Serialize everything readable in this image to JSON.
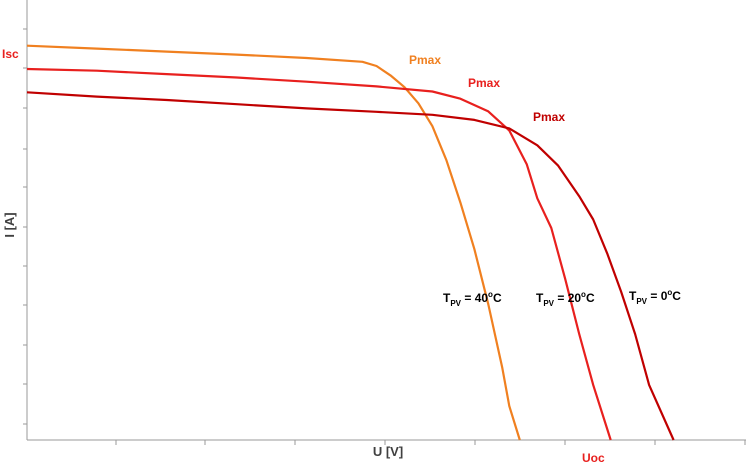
{
  "chart_data": {
    "type": "line",
    "xlabel": "U [V]",
    "ylabel": "I [A]",
    "xlim": [
      0,
      100
    ],
    "ylim": [
      0,
      100
    ],
    "grid": false,
    "series": [
      {
        "name": "T_PV = 40°C",
        "color": "#F08020",
        "pmax_label": "Pmax",
        "points": [
          [
            0,
            93
          ],
          [
            10,
            92.3
          ],
          [
            20,
            91.6
          ],
          [
            30,
            90.9
          ],
          [
            40,
            90.1
          ],
          [
            48,
            89.2
          ],
          [
            50,
            88.2
          ],
          [
            52,
            86
          ],
          [
            54,
            83.2
          ],
          [
            56,
            79.4
          ],
          [
            58,
            74
          ],
          [
            60,
            66
          ],
          [
            62,
            56
          ],
          [
            64,
            45
          ],
          [
            66,
            32
          ],
          [
            68,
            17
          ],
          [
            69,
            8
          ],
          [
            70.5,
            0
          ]
        ]
      },
      {
        "name": "T_PV = 20°C",
        "color": "#E8201E",
        "pmax_label": "Pmax",
        "points": [
          [
            0,
            87.5
          ],
          [
            10,
            87.1
          ],
          [
            20,
            86.3
          ],
          [
            30,
            85.5
          ],
          [
            40,
            84.5
          ],
          [
            50,
            83.4
          ],
          [
            58,
            82.2
          ],
          [
            62,
            80.5
          ],
          [
            66,
            77.5
          ],
          [
            69,
            73
          ],
          [
            71.5,
            65
          ],
          [
            73,
            57
          ],
          [
            75,
            50
          ],
          [
            77,
            38
          ],
          [
            79,
            25
          ],
          [
            81,
            13
          ],
          [
            83.5,
            0
          ]
        ]
      },
      {
        "name": "T_PV = 0°C",
        "color": "#C00000",
        "pmax_label": "Pmax",
        "points": [
          [
            0,
            82
          ],
          [
            10,
            81
          ],
          [
            20,
            80.2
          ],
          [
            30,
            79.2
          ],
          [
            40,
            78.2
          ],
          [
            50,
            77.4
          ],
          [
            58,
            76.7
          ],
          [
            64,
            75.5
          ],
          [
            69,
            73.5
          ],
          [
            73,
            69.5
          ],
          [
            76,
            64.7
          ],
          [
            79,
            57.5
          ],
          [
            81,
            52
          ],
          [
            83,
            44
          ],
          [
            85,
            35
          ],
          [
            87,
            25
          ],
          [
            89,
            13
          ],
          [
            92.5,
            0
          ]
        ]
      }
    ],
    "annotations": {
      "isc": "Isc",
      "uoc": "Uoc"
    }
  }
}
